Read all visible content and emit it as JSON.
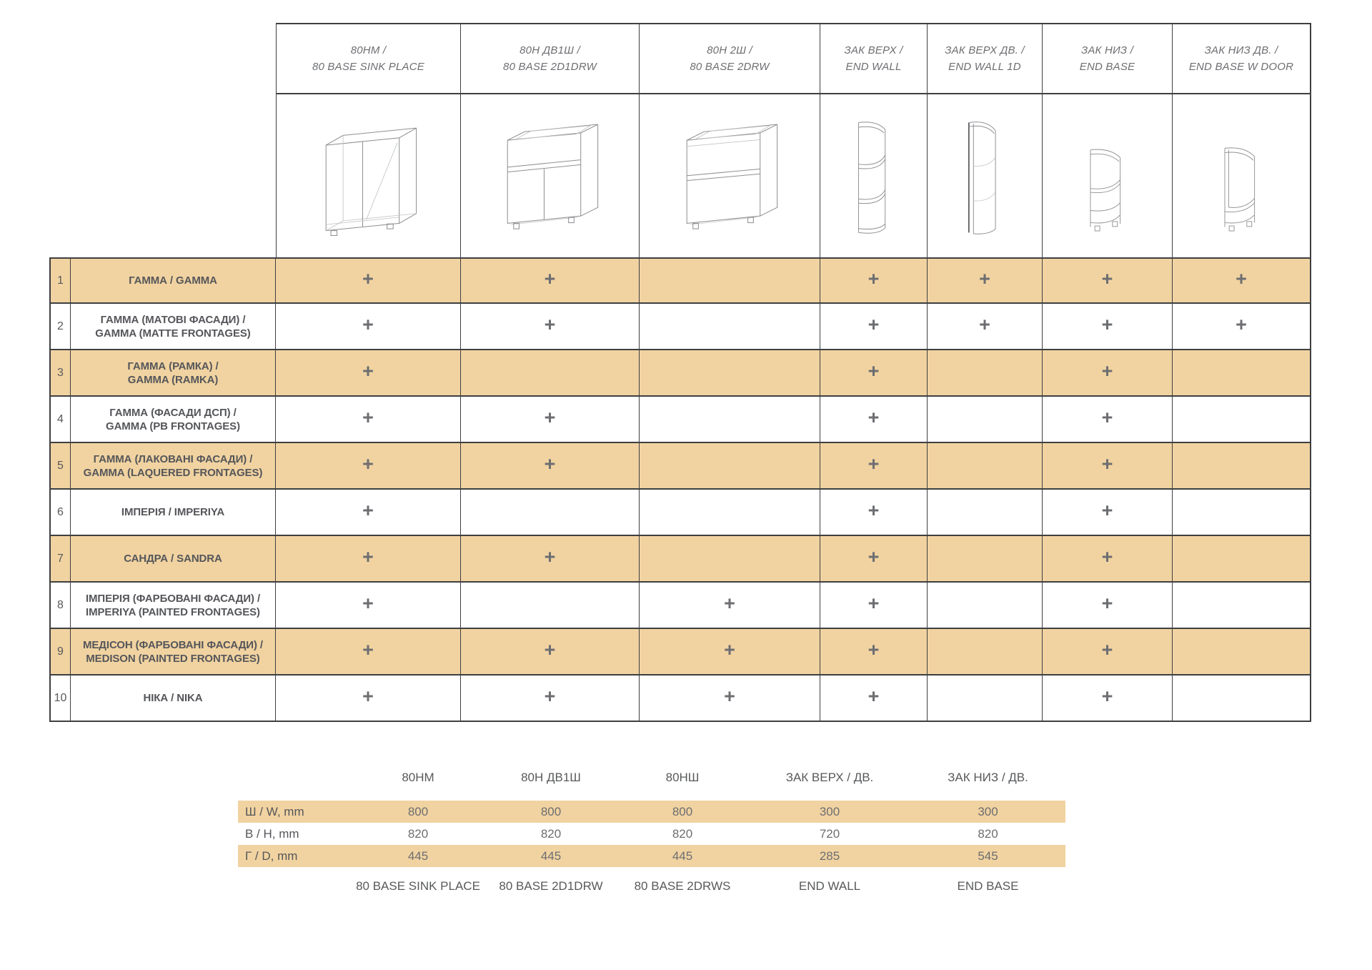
{
  "colors": {
    "band": "#f1d3a1",
    "border": "#3e3f41",
    "text_primary": "#55565a",
    "text_secondary": "#6d6e71"
  },
  "main_table": {
    "columns": [
      {
        "label_line1": "80НМ /",
        "label_line2": "80 BASE SINK PLACE",
        "drawing": "base-sink-cabinet"
      },
      {
        "label_line1": "80Н ДВ1Ш /",
        "label_line2": "80 BASE 2D1DRW",
        "drawing": "base-2door-1drawer-cabinet"
      },
      {
        "label_line1": "80Н 2Ш /",
        "label_line2": "80 BASE 2DRW",
        "drawing": "base-2drawer-cabinet"
      },
      {
        "label_line1": "ЗАК ВЕРХ /",
        "label_line2": "END WALL",
        "drawing": "end-wall-open-unit"
      },
      {
        "label_line1": "ЗАК ВЕРХ ДВ. /",
        "label_line2": "END WALL 1D",
        "drawing": "end-wall-door-unit"
      },
      {
        "label_line1": "ЗАК НИЗ /",
        "label_line2": "END BASE",
        "drawing": "end-base-open-unit"
      },
      {
        "label_line1": "ЗАК НИЗ ДВ. /",
        "label_line2": "END BASE W DOOR",
        "drawing": "end-base-door-unit"
      }
    ],
    "rows": [
      {
        "num": "1",
        "label_lines": [
          "ГАММА / GAMMA"
        ],
        "cells": [
          "+",
          "+",
          "",
          "+",
          "+",
          "+",
          "+"
        ]
      },
      {
        "num": "2",
        "label_lines": [
          "ГАММА (МАТОВІ ФАСАДИ) /",
          "GAMMA (MATTE FRONTAGES)"
        ],
        "cells": [
          "+",
          "+",
          "",
          "+",
          "+",
          "+",
          "+"
        ]
      },
      {
        "num": "3",
        "label_lines": [
          "ГАММА (РАМКА) /",
          "GAMMA (RAMKA)"
        ],
        "cells": [
          "+",
          "",
          "",
          "+",
          "",
          "+",
          ""
        ]
      },
      {
        "num": "4",
        "label_lines": [
          "ГАММА (ФАСАДИ ДСП) /",
          "GAMMA (PB FRONTAGES)"
        ],
        "cells": [
          "+",
          "+",
          "",
          "+",
          "",
          "+",
          ""
        ]
      },
      {
        "num": "5",
        "label_lines": [
          "ГАММА (ЛАКОВАНІ ФАСАДИ) /",
          "GAMMA (LAQUERED FRONTAGES)"
        ],
        "cells": [
          "+",
          "+",
          "",
          "+",
          "",
          "+",
          ""
        ]
      },
      {
        "num": "6",
        "label_lines": [
          "ІМПЕРІЯ / IMPERIYA"
        ],
        "cells": [
          "+",
          "",
          "",
          "+",
          "",
          "+",
          ""
        ]
      },
      {
        "num": "7",
        "label_lines": [
          "САНДРА / SANDRA"
        ],
        "cells": [
          "+",
          "+",
          "",
          "+",
          "",
          "+",
          ""
        ]
      },
      {
        "num": "8",
        "label_lines": [
          "ІМПЕРІЯ (ФАРБОВАНІ ФАСАДИ) /",
          "IMPERIYA (PAINTED FRONTAGES)"
        ],
        "cells": [
          "+",
          "",
          "+",
          "+",
          "",
          "+",
          ""
        ]
      },
      {
        "num": "9",
        "label_lines": [
          "МЕДІСОН (ФАРБОВАНІ ФАСАДИ) /",
          "MEDISON (PAINTED FRONTAGES)"
        ],
        "cells": [
          "+",
          "+",
          "+",
          "+",
          "",
          "+",
          ""
        ]
      },
      {
        "num": "10",
        "label_lines": [
          "НІКА / NIKA"
        ],
        "cells": [
          "+",
          "+",
          "+",
          "+",
          "",
          "+",
          ""
        ]
      }
    ],
    "plus_mark": "+"
  },
  "dimensions_table": {
    "column_headers": [
      "80НМ",
      "80Н ДВ1Ш",
      "80НШ",
      "ЗАК ВЕРХ / ДВ.",
      "ЗАК НИЗ / ДВ."
    ],
    "rows": [
      {
        "label": "Ш / W, mm",
        "values": [
          "800",
          "800",
          "800",
          "300",
          "300"
        ],
        "shaded": true
      },
      {
        "label": "В / H, mm",
        "values": [
          "820",
          "820",
          "820",
          "720",
          "820"
        ],
        "shaded": false
      },
      {
        "label": "Г / D, mm",
        "values": [
          "445",
          "445",
          "445",
          "285",
          "545"
        ],
        "shaded": true
      }
    ],
    "footer_labels": [
      "80 BASE SINK PLACE",
      "80 BASE 2D1DRW",
      "80 BASE 2DRWS",
      "END WALL",
      "END BASE"
    ]
  }
}
